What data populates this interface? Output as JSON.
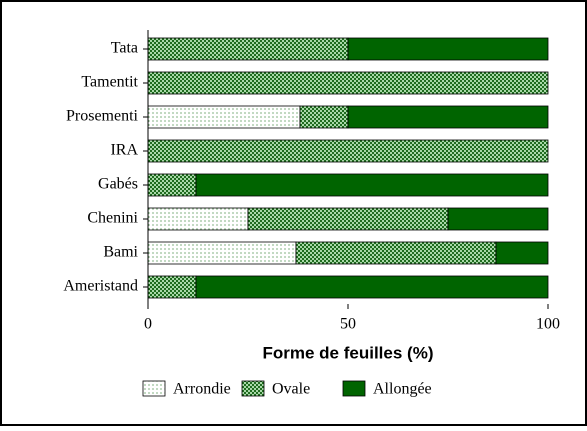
{
  "chart_data": {
    "type": "stacked_barh",
    "x_label": "Forme de feuilles (%)",
    "categories": [
      "Tata",
      "Tamentit",
      "Prosementi",
      "IRA",
      "Gabés",
      "Chenini",
      "Bami",
      "Ameristand"
    ],
    "series": [
      {
        "name": "Arrondie",
        "color": "#ffffff",
        "values": [
          0,
          0,
          38,
          0,
          0,
          25,
          37,
          0
        ]
      },
      {
        "name": "Ovale",
        "color": "#a8d8a8",
        "values": [
          50,
          100,
          12,
          100,
          12,
          50,
          50,
          12
        ]
      },
      {
        "name": "Allongée",
        "color": "#006400",
        "values": [
          50,
          0,
          50,
          0,
          88,
          25,
          13,
          88
        ]
      }
    ],
    "xlim": [
      0,
      100
    ],
    "xticks": [
      0,
      50,
      100
    ]
  }
}
